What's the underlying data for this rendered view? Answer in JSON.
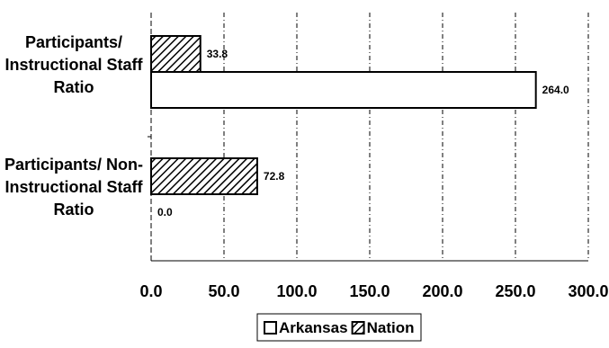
{
  "chart_data": {
    "type": "bar",
    "orientation": "horizontal",
    "categories": [
      [
        "Participants/",
        "Instructional Staff",
        "Ratio"
      ],
      [
        "Participants/ Non-",
        "Instructional Staff",
        "Ratio"
      ]
    ],
    "series": [
      {
        "name": "Arkansas",
        "values": [
          264.0,
          0.0
        ],
        "labels": [
          "264.0",
          "0.0"
        ],
        "fill": "none",
        "color": "#ffffff"
      },
      {
        "name": "Nation",
        "values": [
          33.8,
          72.8
        ],
        "labels": [
          "33.8",
          "72.8"
        ],
        "fill": "hatch",
        "color": "#000000"
      }
    ],
    "xlim": [
      0,
      300
    ],
    "xticks": [
      0,
      50,
      100,
      150,
      200,
      250,
      300
    ],
    "xtick_labels": [
      "0.0",
      "50.0",
      "100.0",
      "150.0",
      "200.0",
      "250.0",
      "300.0"
    ],
    "grid": "vertical dashed",
    "legend": "bottom-center",
    "title": "",
    "xlabel": "",
    "ylabel": ""
  }
}
